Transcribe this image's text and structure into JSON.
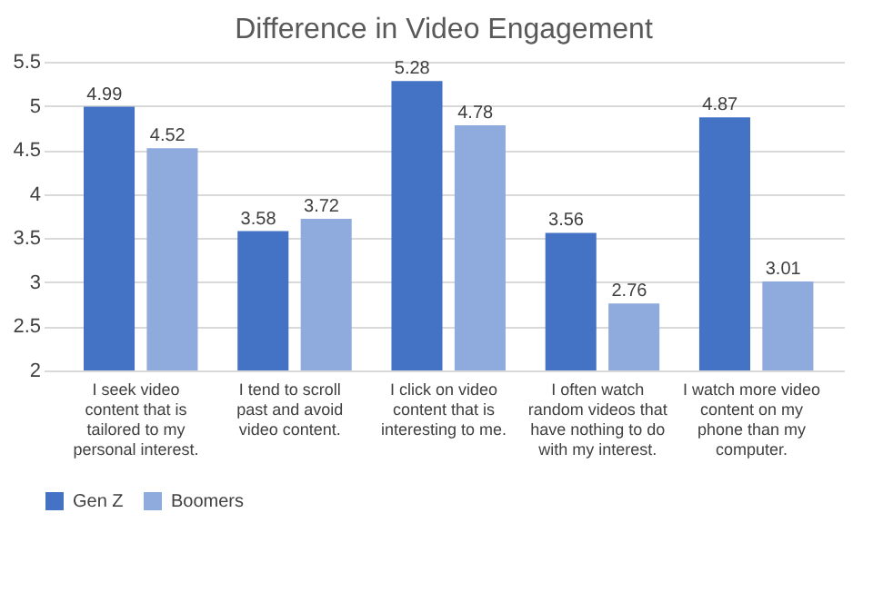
{
  "chart_data": {
    "type": "bar",
    "title": "Difference in Video Engagement",
    "categories": [
      "I seek video content that is tailored to my personal interest.",
      "I tend to scroll past and avoid video content.",
      "I click on video content that is interesting to me.",
      "I often watch random videos that have nothing to do with my interest.",
      "I watch more video content on my phone than my computer."
    ],
    "series": [
      {
        "name": "Gen Z",
        "color": "#4472c4",
        "values": [
          4.99,
          3.58,
          5.28,
          3.56,
          4.87
        ]
      },
      {
        "name": "Boomers",
        "color": "#8faadc",
        "values": [
          4.52,
          3.72,
          4.78,
          2.76,
          3.01
        ]
      }
    ],
    "ylim": [
      2,
      5.5
    ],
    "yticks": [
      2,
      2.5,
      3,
      3.5,
      4,
      4.5,
      5,
      5.5
    ],
    "grid": "y",
    "legend": "bottom",
    "data_labels": true
  }
}
